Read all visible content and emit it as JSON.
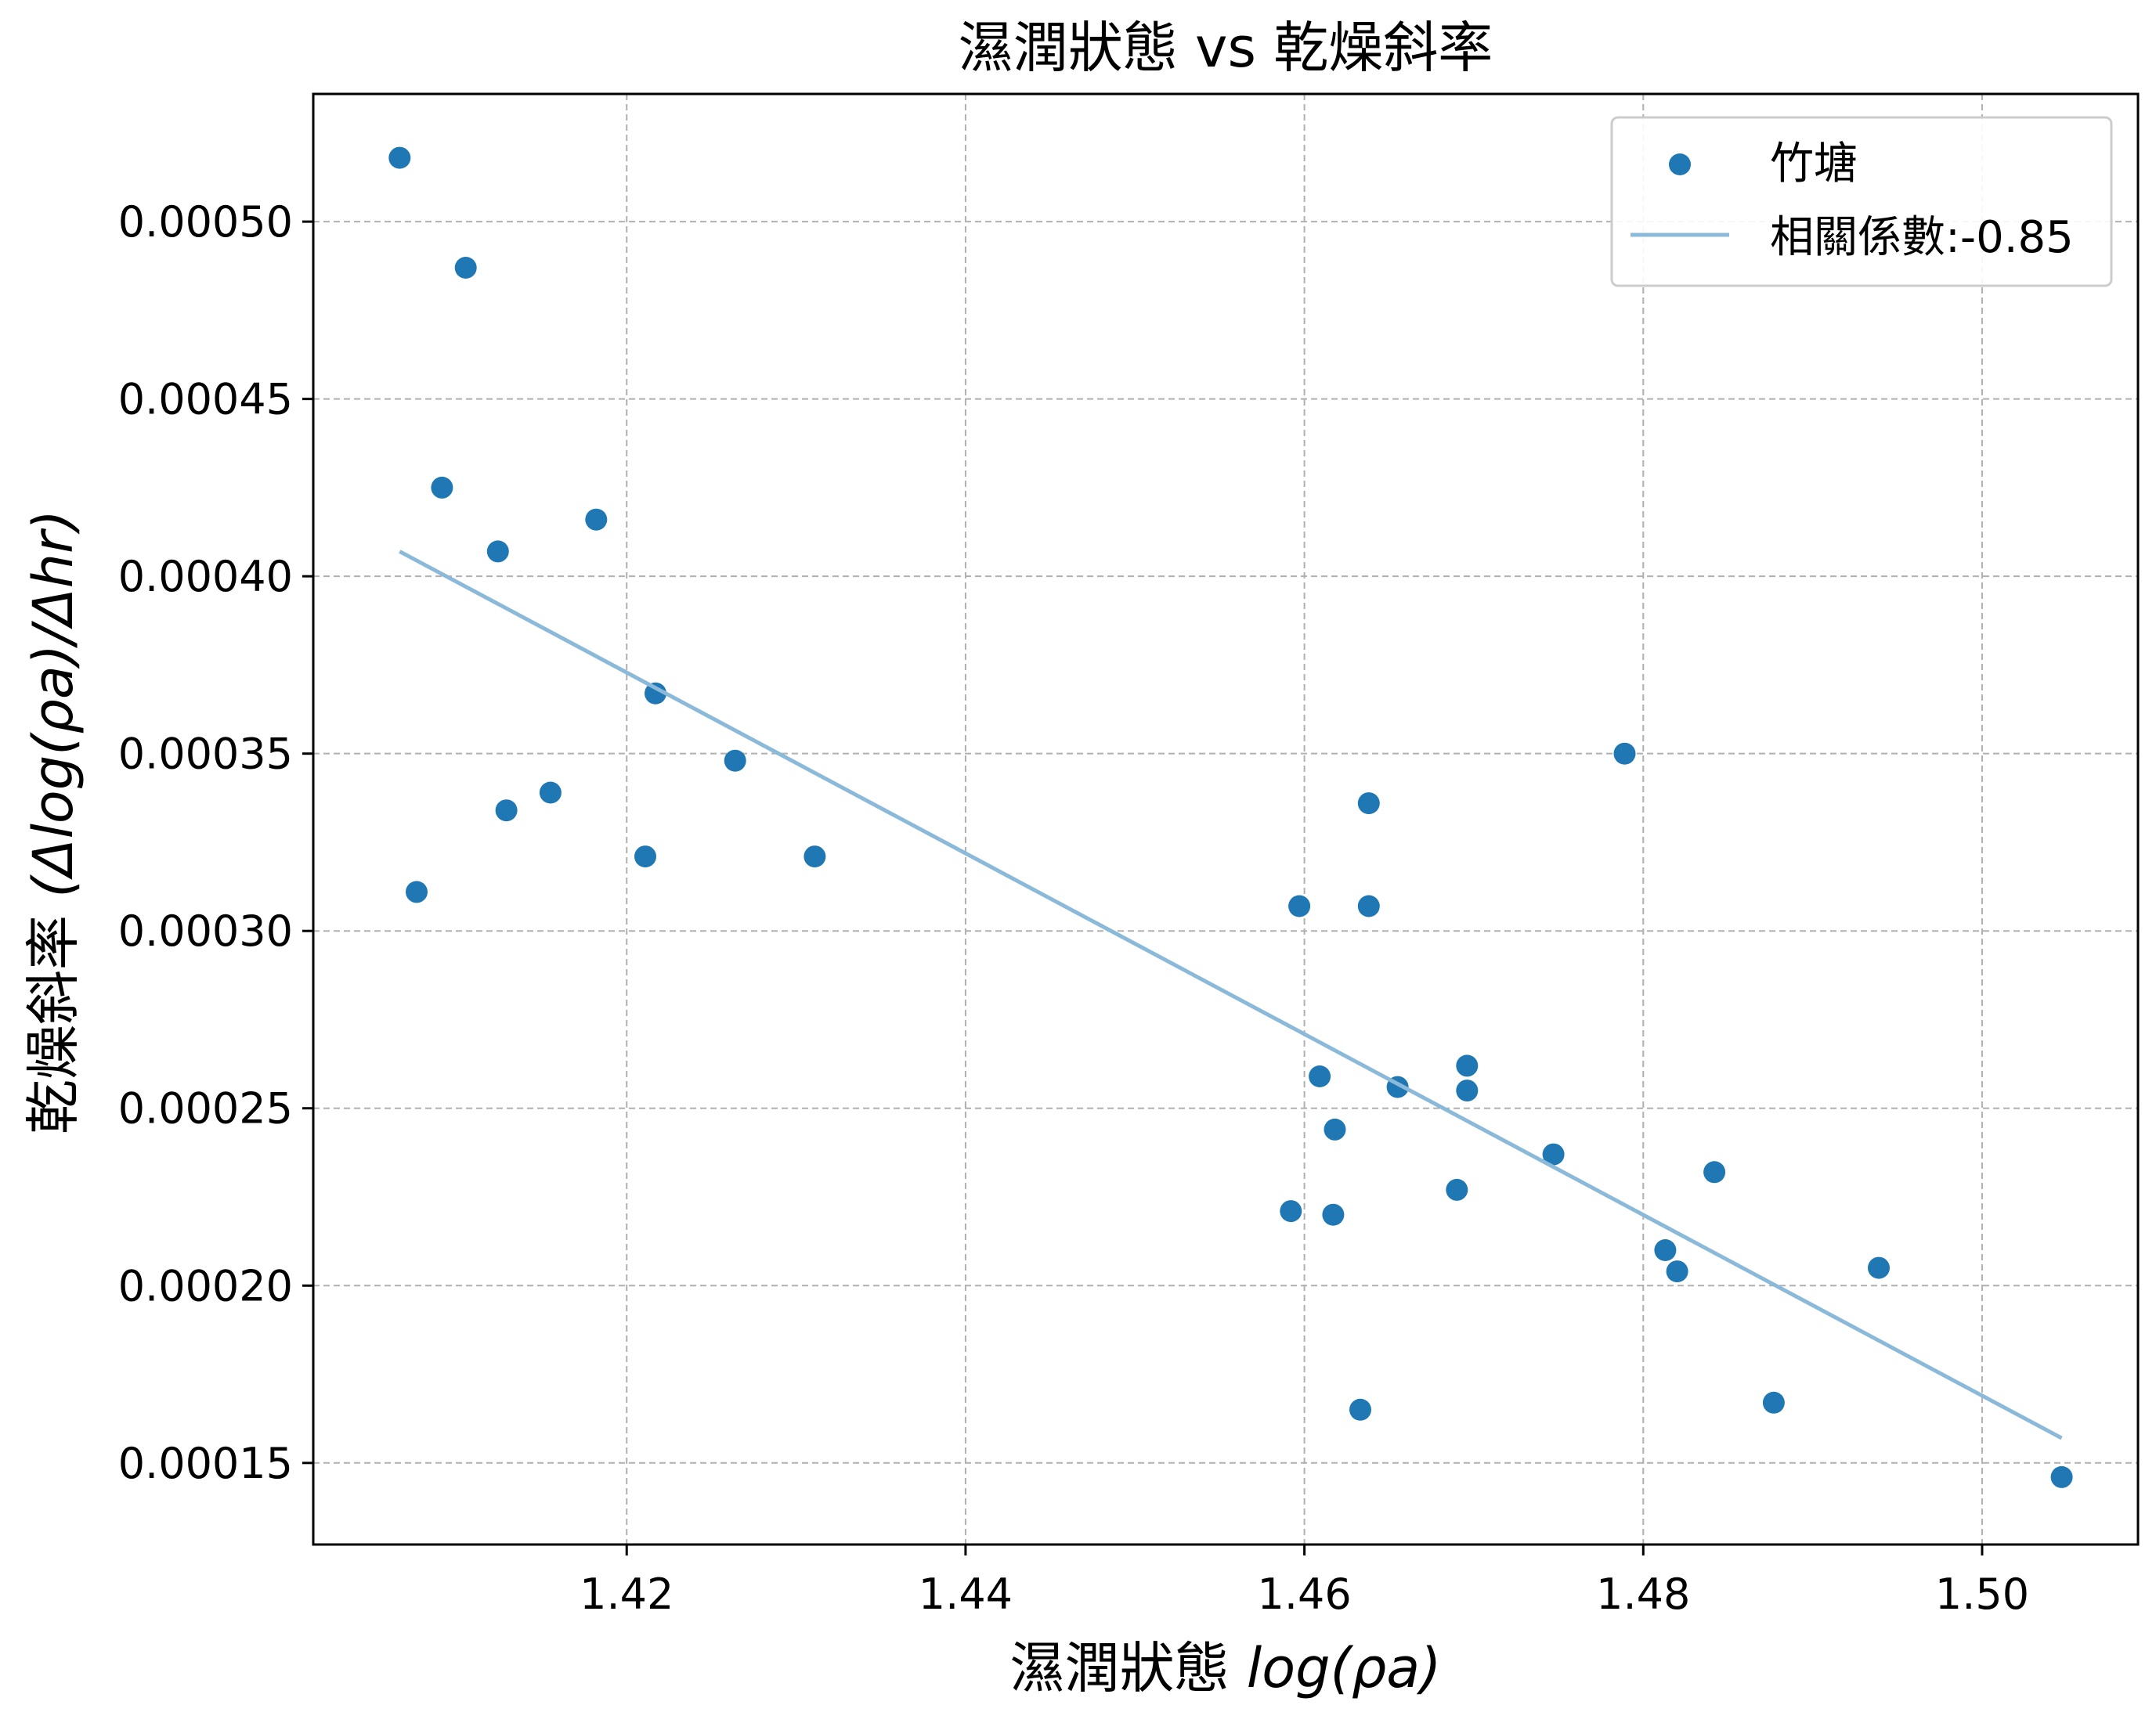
{
  "chart_data": {
    "type": "scatter",
    "title": "濕潤狀態 vs 乾燥斜率",
    "xlabel_prefix": "濕潤狀態 ",
    "xlabel_math": "log(ρa)",
    "ylabel_prefix": "乾燥斜率 ",
    "ylabel_math": "(Δlog(ρa)/Δhr)",
    "xlim": [
      1.4015,
      1.5092
    ],
    "ylim": [
      0.000127,
      0.000536
    ],
    "xticks": [
      1.42,
      1.44,
      1.46,
      1.48,
      1.5
    ],
    "xtick_labels": [
      "1.42",
      "1.44",
      "1.46",
      "1.48",
      "1.50"
    ],
    "yticks": [
      0.00015,
      0.0002,
      0.00025,
      0.0003,
      0.00035,
      0.0004,
      0.00045,
      0.0005
    ],
    "ytick_labels": [
      "0.00015",
      "0.00020",
      "0.00025",
      "0.00030",
      "0.00035",
      "0.00040",
      "0.00045",
      "0.00050"
    ],
    "grid": true,
    "legend_position": "upper right",
    "series": [
      {
        "name": "竹塘",
        "kind": "scatter",
        "color": "#1f77b4",
        "points": [
          [
            1.4066,
            0.000518
          ],
          [
            1.4105,
            0.000487
          ],
          [
            1.4091,
            0.000425
          ],
          [
            1.4124,
            0.000407
          ],
          [
            1.4182,
            0.000416
          ],
          [
            1.4217,
            0.000367
          ],
          [
            1.4264,
            0.000348
          ],
          [
            1.4129,
            0.000334
          ],
          [
            1.4155,
            0.000339
          ],
          [
            1.4211,
            0.000321
          ],
          [
            1.4311,
            0.000321
          ],
          [
            1.4076,
            0.000311
          ],
          [
            1.4597,
            0.000307
          ],
          [
            1.4638,
            0.000307
          ],
          [
            1.4638,
            0.000336
          ],
          [
            1.4609,
            0.000259
          ],
          [
            1.4655,
            0.000256
          ],
          [
            1.4696,
            0.000262
          ],
          [
            1.4696,
            0.000255
          ],
          [
            1.4618,
            0.000244
          ],
          [
            1.4747,
            0.000237
          ],
          [
            1.469,
            0.000227
          ],
          [
            1.4592,
            0.000221
          ],
          [
            1.4617,
            0.00022
          ],
          [
            1.4789,
            0.00035
          ],
          [
            1.4842,
            0.000232
          ],
          [
            1.4813,
            0.00021
          ],
          [
            1.482,
            0.000204
          ],
          [
            1.4939,
            0.000205
          ],
          [
            1.4633,
            0.000165
          ],
          [
            1.4877,
            0.000167
          ],
          [
            1.5047,
            0.000146
          ]
        ]
      },
      {
        "name": "相關係數:-0.85",
        "kind": "line",
        "color": "#8bb9d9",
        "points": [
          [
            1.4066,
            0.000407
          ],
          [
            1.5047,
            0.000157
          ]
        ]
      }
    ]
  }
}
